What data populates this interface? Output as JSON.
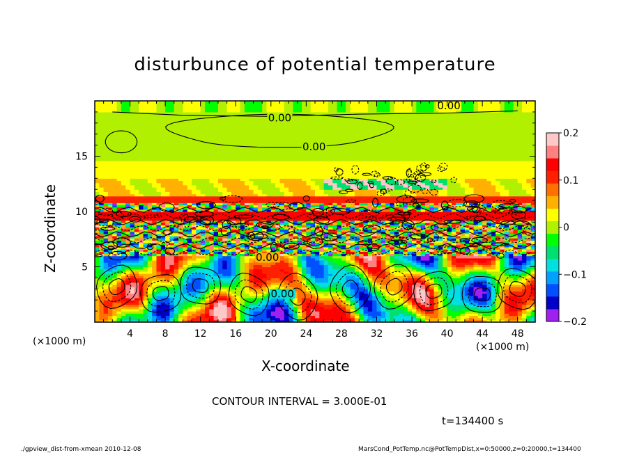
{
  "chart_data": {
    "type": "heatmap",
    "title": "disturbunce of potential temperature",
    "xlabel": "X-coordinate",
    "ylabel": "Z-coordinate",
    "x_unit_label": "(×1000 m)",
    "xlim": [
      0,
      50
    ],
    "ylim": [
      0,
      20
    ],
    "x_ticks": [
      4,
      8,
      12,
      16,
      20,
      24,
      28,
      32,
      36,
      40,
      44,
      48
    ],
    "y_ticks": [
      5,
      10,
      15
    ],
    "colorbar": {
      "range": [
        -0.2,
        0.2
      ],
      "tick_labels": [
        "0.2",
        "0.1",
        "0",
        "−0.1",
        "−0.2"
      ],
      "tick_values": [
        0.2,
        0.1,
        0,
        -0.1,
        -0.2
      ],
      "colors": [
        "#a020f0",
        "#0000c8",
        "#0050ff",
        "#00a0ff",
        "#00e0e0",
        "#00e070",
        "#00ff00",
        "#b0f000",
        "#ffff00",
        "#ffb000",
        "#ff7000",
        "#ff2000",
        "#ff0000",
        "#ff8080",
        "#ffc8c8"
      ]
    },
    "contour_labels": [
      {
        "text": "0.00",
        "x": 40.2,
        "z": 19.3
      },
      {
        "text": "0.00",
        "x": 21.0,
        "z": 18.2
      },
      {
        "text": "0.00",
        "x": 24.9,
        "z": 15.6
      },
      {
        "text": "0.00",
        "x": 19.6,
        "z": 5.6
      },
      {
        "text": "0.00",
        "x": 21.3,
        "z": 2.3
      }
    ],
    "contour_interval": "CONTOUR INTERVAL = 3.000E-01",
    "time_label": "t=134400 s"
  },
  "footer": {
    "left": "./gpview_dist-from-xmean  2010-12-08",
    "right": "MarsCond_PotTemp.nc@PotTempDist,x=0:50000,z=0:20000,t=134400"
  }
}
